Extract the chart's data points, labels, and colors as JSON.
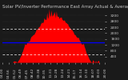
{
  "title": "Solar PV/Inverter Performance East Array Actual & Average Power Output",
  "bg_color": "#1a1a1a",
  "plot_bg_color": "#1a1a1a",
  "grid_color": "#444444",
  "bar_color": "#ff0000",
  "avg_line_color": "#0000ff",
  "dotted_line_color": "#ffffff",
  "title_color": "#cccccc",
  "tick_color": "#cccccc",
  "n_points": 144,
  "peak_value": 3200,
  "avg_value": 1350,
  "dotted1": 2300,
  "dotted2": 550,
  "ylim": [
    0,
    3600
  ],
  "ylabel_right_ticks": [
    400,
    800,
    1200,
    1600,
    2000,
    2400,
    2800,
    3200
  ],
  "x_tick_count": 18,
  "title_fontsize": 4.0,
  "tick_fontsize": 3.2
}
